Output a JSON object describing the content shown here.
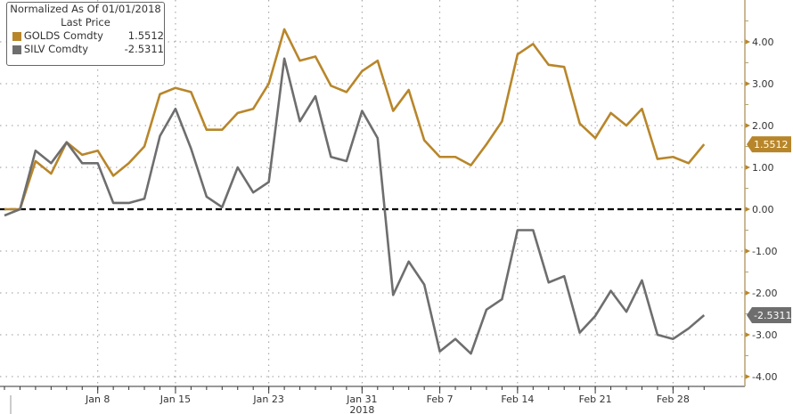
{
  "chart_data": {
    "type": "line",
    "title": "Normalized As Of 01/01/2018",
    "subtitle": "Last Price",
    "x": [
      "2017-12-29",
      "2018-01-01",
      "2018-01-02",
      "2018-01-03",
      "2018-01-04",
      "2018-01-05",
      "2018-01-08",
      "2018-01-09",
      "2018-01-10",
      "2018-01-11",
      "2018-01-12",
      "2018-01-15",
      "2018-01-16",
      "2018-01-17",
      "2018-01-18",
      "2018-01-19",
      "2018-01-22",
      "2018-01-23",
      "2018-01-24",
      "2018-01-25",
      "2018-01-26",
      "2018-01-29",
      "2018-01-30",
      "2018-01-31",
      "2018-02-01",
      "2018-02-02",
      "2018-02-05",
      "2018-02-06",
      "2018-02-07",
      "2018-02-08",
      "2018-02-09",
      "2018-02-12",
      "2018-02-13",
      "2018-02-14",
      "2018-02-15",
      "2018-02-16",
      "2018-02-19",
      "2018-02-20",
      "2018-02-21",
      "2018-02-22",
      "2018-02-23",
      "2018-02-26",
      "2018-02-27",
      "2018-02-28",
      "2018-03-01",
      "2018-03-02"
    ],
    "x_ticks": [
      {
        "date": "2018-01-08",
        "label": "Jan 8"
      },
      {
        "date": "2018-01-15",
        "label": "Jan 15"
      },
      {
        "date": "2018-01-23",
        "label": "Jan 23"
      },
      {
        "date": "2018-01-31",
        "label": "Jan 31"
      },
      {
        "date": "2018-02-07",
        "label": "Feb 7"
      },
      {
        "date": "2018-02-14",
        "label": "Feb 14"
      },
      {
        "date": "2018-02-21",
        "label": "Feb 21"
      },
      {
        "date": "2018-02-28",
        "label": "Feb 28"
      }
    ],
    "year_label": "2018",
    "y_ticks": [
      "4.00",
      "3.00",
      "2.00",
      "1.00",
      "0.00",
      "-1.00",
      "-2.00",
      "-3.00",
      "-4.00"
    ],
    "ylim": [
      -4.2,
      4.9
    ],
    "grid": true,
    "y_axis_side": "right",
    "legend_position": "top-left",
    "reference_line": 0,
    "series": [
      {
        "name": "GOLDS Comdty",
        "last": "1.5512",
        "color": "#b8862a",
        "values": [
          0.0,
          0.0,
          1.15,
          0.85,
          1.6,
          1.3,
          1.4,
          0.8,
          1.1,
          1.5,
          2.75,
          2.9,
          2.8,
          1.9,
          1.9,
          2.3,
          2.4,
          3.0,
          4.3,
          3.55,
          3.65,
          2.95,
          2.8,
          3.3,
          3.55,
          2.35,
          2.85,
          1.65,
          1.25,
          1.25,
          1.05,
          1.55,
          2.1,
          3.7,
          3.95,
          3.45,
          3.4,
          2.05,
          1.7,
          2.3,
          2.0,
          2.4,
          1.2,
          1.25,
          1.1,
          1.5512
        ]
      },
      {
        "name": "SILV Comdty",
        "last": "-2.5311",
        "color": "#6e6e6e",
        "values": [
          -0.15,
          0.0,
          1.4,
          1.1,
          1.6,
          1.1,
          1.1,
          0.15,
          0.15,
          0.25,
          1.75,
          2.4,
          1.45,
          0.3,
          0.05,
          1.0,
          0.4,
          0.65,
          3.6,
          2.1,
          2.7,
          1.25,
          1.15,
          2.35,
          1.7,
          -2.05,
          -1.25,
          -1.8,
          -3.4,
          -3.1,
          -3.45,
          -2.4,
          -2.15,
          -0.5,
          -0.5,
          -1.75,
          -1.6,
          -2.95,
          -2.55,
          -1.95,
          -2.45,
          -1.7,
          -3.0,
          -3.1,
          -2.85,
          -2.5311
        ]
      }
    ]
  }
}
